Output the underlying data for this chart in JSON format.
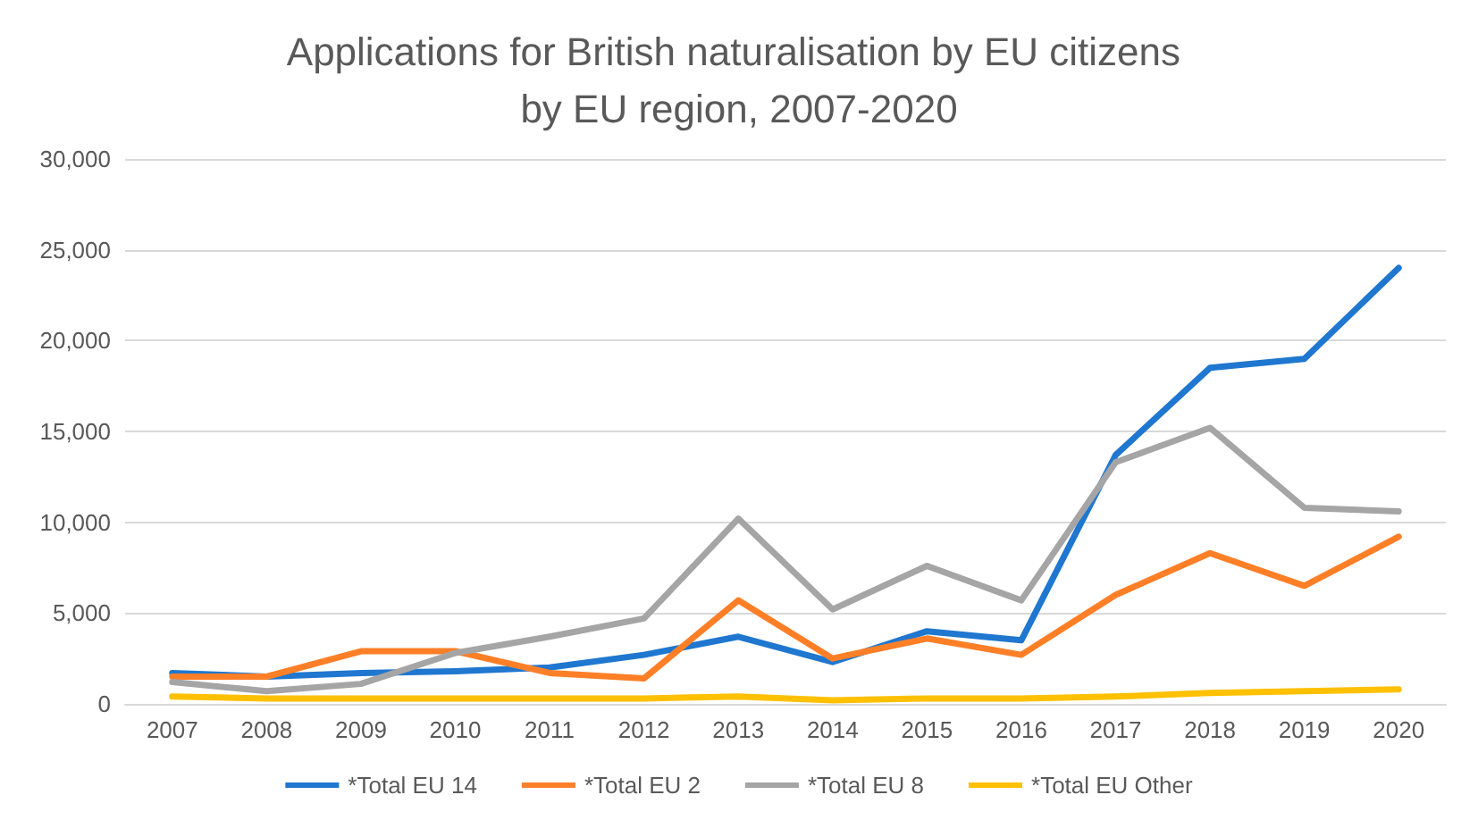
{
  "chart_data": {
    "type": "line",
    "title": "Applications for British naturalisation by EU citizens by EU region, 2007-2020",
    "categories": [
      "2007",
      "2008",
      "2009",
      "2010",
      "2011",
      "2012",
      "2013",
      "2014",
      "2015",
      "2016",
      "2017",
      "2018",
      "2019",
      "2020"
    ],
    "series": [
      {
        "name": "*Total EU 14",
        "color": "#1f77d0",
        "values": [
          1700,
          1500,
          1700,
          1800,
          2000,
          2700,
          3700,
          2300,
          4000,
          3500,
          13700,
          18500,
          19000,
          24000
        ]
      },
      {
        "name": "*Total EU 2",
        "color": "#ff7f27",
        "values": [
          1500,
          1500,
          2900,
          2900,
          1700,
          1400,
          5700,
          2500,
          3600,
          2700,
          6000,
          8300,
          6500,
          9200
        ]
      },
      {
        "name": "*Total EU 8",
        "color": "#a5a5a5",
        "values": [
          1200,
          700,
          1100,
          2800,
          3700,
          4700,
          10200,
          5200,
          7600,
          5700,
          13300,
          15200,
          10800,
          10600
        ]
      },
      {
        "name": "*Total EU Other",
        "color": "#ffc000",
        "values": [
          400,
          300,
          300,
          300,
          300,
          300,
          400,
          200,
          300,
          300,
          400,
          600,
          700,
          800
        ]
      }
    ],
    "ylim": [
      0,
      30000
    ],
    "yticks": [
      0,
      {
        "value": 5000,
        "label": "5,000"
      },
      {
        "value": 10000,
        "label": "10,000"
      },
      {
        "value": 15000,
        "label": "15,000"
      },
      {
        "value": 20000,
        "label": "20,000"
      },
      {
        "value": 25000,
        "label": "25,000"
      },
      {
        "value": 30000,
        "label": "30,000"
      }
    ],
    "grid": "y",
    "legend": "bottom",
    "marker": "none"
  }
}
